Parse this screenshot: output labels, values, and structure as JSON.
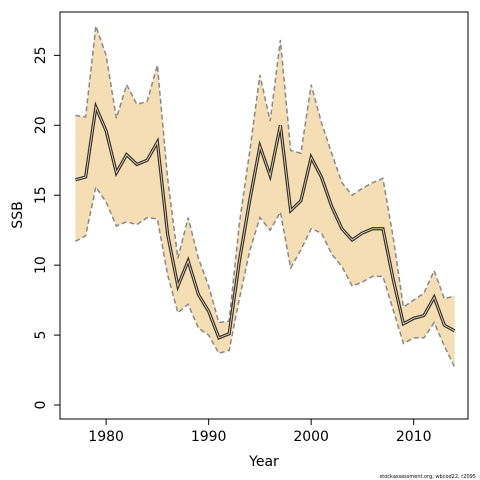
{
  "chart_data": {
    "type": "area",
    "xlabel": "Year",
    "ylabel": "SSB",
    "xlim": [
      1975.5,
      2015.3
    ],
    "ylim": [
      -1,
      28.1
    ],
    "x_ticks": [
      1980,
      1990,
      2000,
      2010
    ],
    "y_ticks": [
      0,
      5,
      10,
      15,
      20,
      25
    ],
    "grid": false,
    "x": [
      1977,
      1978,
      1979,
      1980,
      1981,
      1982,
      1983,
      1984,
      1985,
      1986,
      1987,
      1988,
      1989,
      1990,
      1991,
      1992,
      1993,
      1994,
      1995,
      1996,
      1997,
      1998,
      1999,
      2000,
      2001,
      2002,
      2003,
      2004,
      2005,
      2006,
      2007,
      2008,
      2009,
      2010,
      2011,
      2012,
      2013,
      2014
    ],
    "series": [
      {
        "role": "estimate",
        "color": "#333333",
        "values": [
          16.1,
          16.3,
          21.3,
          19.6,
          16.6,
          17.9,
          17.2,
          17.5,
          18.8,
          12.2,
          8.5,
          10.3,
          7.9,
          6.7,
          4.8,
          5.1,
          10.3,
          14.6,
          18.5,
          16.4,
          20.0,
          13.9,
          14.6,
          17.7,
          16.3,
          14.2,
          12.6,
          11.8,
          12.3,
          12.6,
          12.6,
          9.0,
          5.8,
          6.2,
          6.4,
          7.7,
          5.7,
          5.3
        ]
      },
      {
        "role": "upper",
        "color": "#888888",
        "values": [
          20.7,
          20.6,
          27.1,
          25.0,
          20.5,
          22.9,
          21.5,
          21.7,
          24.3,
          16.2,
          10.5,
          13.4,
          10.5,
          8.5,
          5.9,
          6.0,
          13.0,
          18.1,
          23.6,
          20.3,
          26.1,
          18.2,
          18.0,
          22.9,
          20.2,
          18.0,
          15.9,
          15.0,
          15.5,
          15.9,
          16.2,
          12.0,
          7.0,
          7.5,
          8.0,
          9.6,
          7.6,
          7.8
        ]
      },
      {
        "role": "lower",
        "color": "#888888",
        "values": [
          11.7,
          12.1,
          15.6,
          14.5,
          12.8,
          13.1,
          12.9,
          13.4,
          13.3,
          9.3,
          6.6,
          7.2,
          5.5,
          5.0,
          3.7,
          3.9,
          7.6,
          11.0,
          13.4,
          12.5,
          13.8,
          9.8,
          11.1,
          12.6,
          12.3,
          10.8,
          9.9,
          8.5,
          8.8,
          9.2,
          9.2,
          6.8,
          4.4,
          4.8,
          4.8,
          5.9,
          4.2,
          2.7
        ]
      }
    ],
    "band_color": "#f5deb3"
  },
  "credit_text": "stockassessment.org, wbcod22, r2095"
}
